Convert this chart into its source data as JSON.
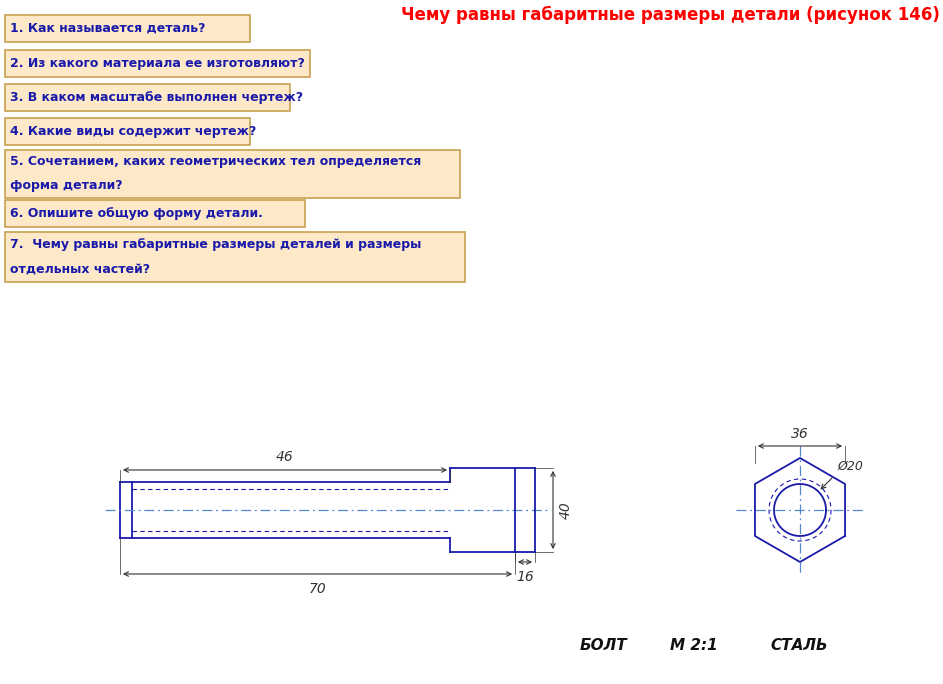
{
  "questions": [
    "1. Как называется деталь?",
    "2. Из какого материала ее изготовляют?",
    "3. В каком масштабе выполнен чертеж?",
    "4. Какие виды содержит чертеж?",
    "5. Сочетанием, каких геометрических тел определяется\nформа детали?",
    "6. Опишите общую форму детали.",
    "7.  Чему равны габаритные размеры деталей и размеры\nотдельных частей?"
  ],
  "bg_color": "#ffffff",
  "box_fill": "#fde8c8",
  "box_edge": "#c8a050",
  "text_color": "#1a1aaa",
  "line_color": "#1a1aaa",
  "dim_color": "#333333",
  "bolt_text": "БОЛТ",
  "scale_text": "M 2:1",
  "material_text": "СТАЛЬ"
}
